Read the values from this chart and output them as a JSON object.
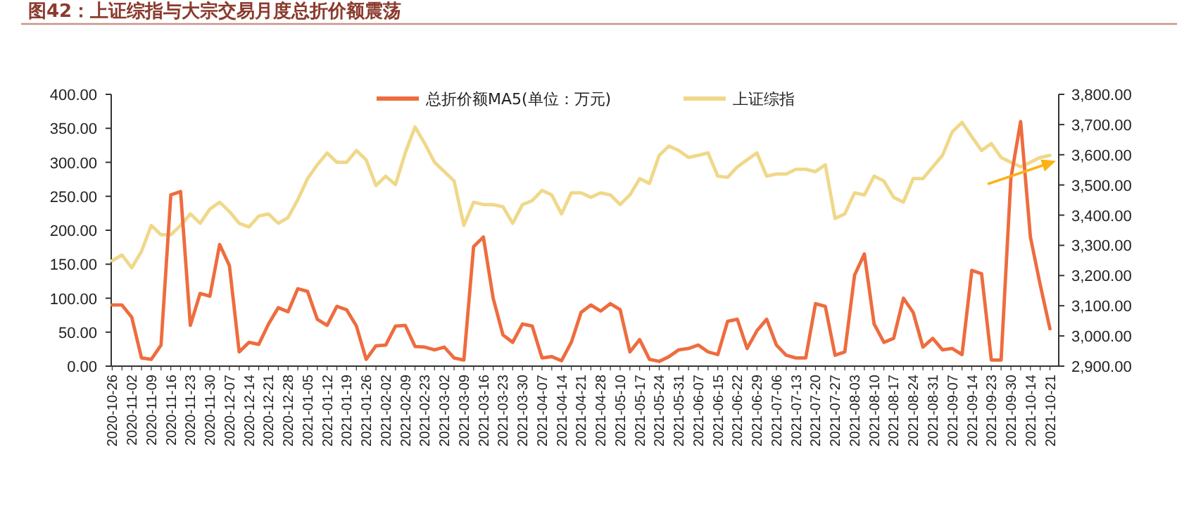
{
  "chart_data": {
    "type": "line",
    "title": "图42：上证综指与大宗交易月度总折价额震荡",
    "categories": [
      "2020-10-26",
      null,
      "2020-11-02",
      null,
      "2020-11-09",
      null,
      "2020-11-16",
      null,
      "2020-11-23",
      null,
      "2020-11-30",
      null,
      "2020-12-07",
      null,
      "2020-12-14",
      null,
      "2020-12-21",
      null,
      "2020-12-28",
      null,
      "2021-01-05",
      null,
      "2021-01-12",
      null,
      "2021-01-19",
      null,
      "2021-01-26",
      null,
      "2021-02-02",
      null,
      "2021-02-09",
      null,
      "2021-02-23",
      null,
      "2021-03-02",
      null,
      "2021-03-09",
      null,
      "2021-03-16",
      null,
      "2021-03-23",
      null,
      "2021-03-30",
      null,
      "2021-04-07",
      null,
      "2021-04-14",
      null,
      "2021-04-21",
      null,
      "2021-04-28",
      null,
      "2021-05-10",
      null,
      "2021-05-17",
      null,
      "2021-05-24",
      null,
      "2021-05-31",
      null,
      "2021-06-07",
      null,
      "2021-06-15",
      null,
      "2021-06-22",
      null,
      "2021-06-29",
      null,
      "2021-07-06",
      null,
      "2021-07-13",
      null,
      "2021-07-20",
      null,
      "2021-07-27",
      null,
      "2021-08-03",
      null,
      "2021-08-10",
      null,
      "2021-08-17",
      null,
      "2021-08-24",
      null,
      "2021-08-31",
      null,
      "2021-09-07",
      null,
      "2021-09-14",
      null,
      "2021-09-23",
      null,
      "2021-09-30",
      null,
      "2021-10-14",
      null,
      "2021-10-21"
    ],
    "series": [
      {
        "name": "总折价额MA5(单位：万元)",
        "color": "#ee6c3e",
        "values": [
          90,
          90,
          72,
          12,
          10,
          31,
          252,
          257,
          60,
          107,
          103,
          179,
          148,
          21,
          35,
          32,
          62,
          86,
          80,
          114,
          110,
          69,
          60,
          88,
          83,
          59,
          10,
          30,
          31,
          59,
          60,
          29,
          28,
          24,
          28,
          12,
          9,
          176,
          190,
          100,
          46,
          35,
          62,
          59,
          12,
          14,
          8,
          35,
          79,
          90,
          81,
          92,
          83,
          21,
          39,
          10,
          7,
          14,
          24,
          26,
          31,
          21,
          17,
          66,
          69,
          26,
          52,
          69,
          31,
          16,
          12,
          12,
          92,
          88,
          16,
          21,
          134,
          165,
          62,
          35,
          41,
          100,
          79,
          28,
          41,
          24,
          26,
          17,
          141,
          136,
          9,
          9,
          276,
          360,
          190,
          120,
          55
        ]
      },
      {
        "name": "上证综指",
        "color": "#f0d88a",
        "axis": "y2",
        "values": [
          3249,
          3268,
          3226,
          3280,
          3366,
          3335,
          3335,
          3366,
          3404,
          3373,
          3420,
          3443,
          3412,
          3373,
          3361,
          3397,
          3404,
          3373,
          3392,
          3451,
          3521,
          3567,
          3606,
          3575,
          3575,
          3614,
          3583,
          3498,
          3529,
          3501,
          3606,
          3692,
          3637,
          3575,
          3544,
          3513,
          3366,
          3443,
          3435,
          3435,
          3428,
          3373,
          3435,
          3448,
          3482,
          3467,
          3404,
          3474,
          3474,
          3459,
          3474,
          3467,
          3435,
          3467,
          3521,
          3505,
          3598,
          3629,
          3614,
          3591,
          3598,
          3606,
          3529,
          3525,
          3560,
          3583,
          3606,
          3529,
          3536,
          3536,
          3552,
          3552,
          3544,
          3567,
          3389,
          3404,
          3474,
          3467,
          3529,
          3513,
          3459,
          3443,
          3521,
          3521,
          3560,
          3598,
          3676,
          3707,
          3660,
          3614,
          3637,
          3591,
          3575,
          3560,
          3575,
          3591,
          3598
        ]
      }
    ],
    "ylim": [
      0,
      400
    ],
    "yticks": [
      {
        "value": 0,
        "label": "0.00"
      },
      {
        "value": 50,
        "label": "50.00"
      },
      {
        "value": 100,
        "label": "100.00"
      },
      {
        "value": 150,
        "label": "150.00"
      },
      {
        "value": 200,
        "label": "200.00"
      },
      {
        "value": 250,
        "label": "250.00"
      },
      {
        "value": 300,
        "label": "300.00"
      },
      {
        "value": 350,
        "label": "350.00"
      },
      {
        "value": 400,
        "label": "400.00"
      }
    ],
    "y2lim": [
      2900,
      3800
    ],
    "y2ticks": [
      {
        "value": 2900,
        "label": "2,900.00"
      },
      {
        "value": 3000,
        "label": "3,000.00"
      },
      {
        "value": 3100,
        "label": "3,100.00"
      },
      {
        "value": 3200,
        "label": "3,200.00"
      },
      {
        "value": 3300,
        "label": "3,300.00"
      },
      {
        "value": 3400,
        "label": "3,400.00"
      },
      {
        "value": 3500,
        "label": "3,500.00"
      },
      {
        "value": 3600,
        "label": "3,600.00"
      },
      {
        "value": 3700,
        "label": "3,700.00"
      },
      {
        "value": 3800,
        "label": "3,800.00"
      }
    ],
    "legend": "top",
    "grid": false,
    "marker": "none",
    "line_style": "solid"
  }
}
